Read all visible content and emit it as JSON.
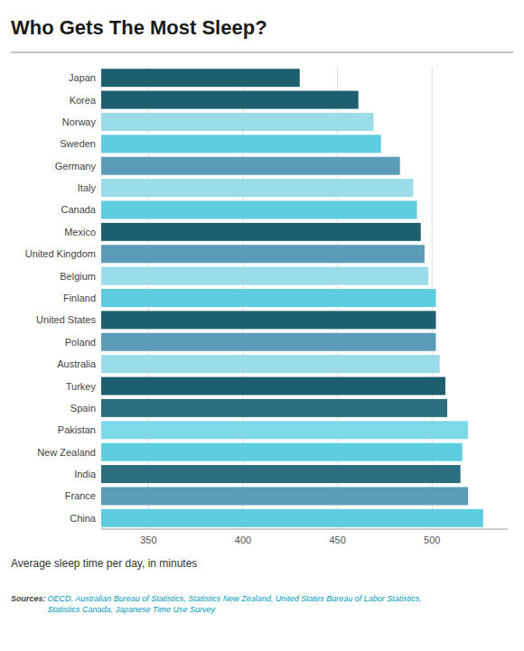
{
  "chart_data": {
    "type": "bar",
    "orientation": "horizontal",
    "title": "Who Gets The Most Sleep?",
    "xlabel": "Average sleep time per day, in minutes",
    "annotations": [
      "Sources:",
      " OECD, Australian Bureau of Statistics, Statistics New Zealand, United States Bureau of Labor Statistics,\nStatistics Canada, Japanese Time Use Survey"
    ],
    "categories": [
      "China",
      "France",
      "India",
      "New Zealand",
      "Pakistan",
      "Spain",
      "Turkey",
      "Australia",
      "Poland",
      "United States",
      "Finland",
      "Belgium",
      "United Kingdom",
      "Mexico",
      "Canada",
      "Italy",
      "Germany",
      "Sweden",
      "Norway",
      "Korea",
      "Japan"
    ],
    "values": [
      527,
      519,
      515,
      516,
      519,
      508,
      507,
      504,
      502,
      502,
      502,
      498,
      496,
      494,
      492,
      490,
      483,
      473,
      469,
      461,
      430
    ],
    "colors": [
      "#5ecde0",
      "#5b9db8",
      "#2d6e7e",
      "#5ecde0",
      "#7dd8e8",
      "#2d6e7e",
      "#1d5f6e",
      "#9adce8",
      "#5b9db8",
      "#1d5f6e",
      "#5ecde0",
      "#9adce8",
      "#5b9db8",
      "#1d5f6e",
      "#5ecde0",
      "#9adce8",
      "#5b9db8",
      "#5ecde0",
      "#9adce8",
      "#1d5f6e",
      "#1d5f6e"
    ],
    "xlim": [
      325,
      540
    ],
    "xticks": [
      350,
      400,
      450,
      500
    ],
    "grid": true
  }
}
